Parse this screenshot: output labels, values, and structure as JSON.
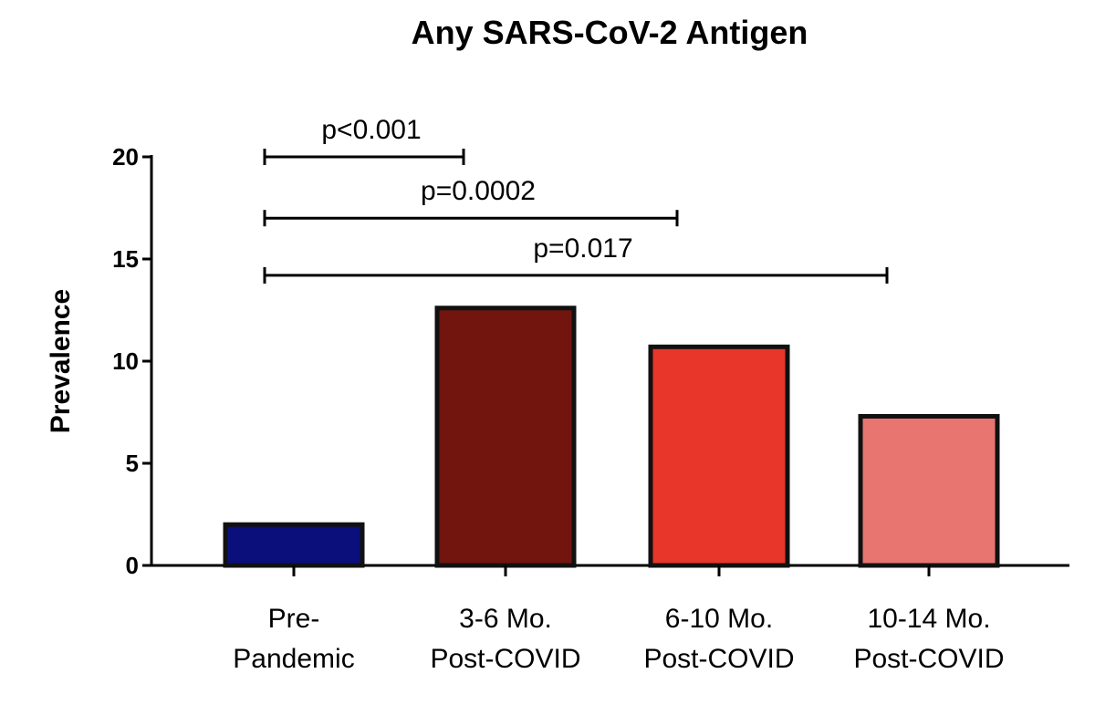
{
  "chart_data": {
    "type": "bar",
    "title": "Any SARS-CoV-2 Antigen",
    "xlabel": "",
    "ylabel": "Prevalence",
    "ylim": [
      0,
      20
    ],
    "yticks": [
      "0",
      "5",
      "10",
      "15",
      "20"
    ],
    "grid": false,
    "categories": [
      {
        "line1": "Pre-",
        "line2": "Pandemic"
      },
      {
        "line1": "3-6 Mo.",
        "line2": "Post-COVID"
      },
      {
        "line1": "6-10 Mo.",
        "line2": "Post-COVID"
      },
      {
        "line1": "10-14 Mo.",
        "line2": "Post-COVID"
      }
    ],
    "values": [
      2.0,
      12.6,
      10.7,
      7.3
    ],
    "colors": [
      "#0a0f7c",
      "#72150f",
      "#e8362a",
      "#e87570"
    ],
    "comparisons": [
      {
        "from": 0,
        "to": 1,
        "label": "p<0.001",
        "level": 20
      },
      {
        "from": 0,
        "to": 2,
        "label": "p=0.0002",
        "level": 17
      },
      {
        "from": 0,
        "to": 3,
        "label": "p=0.017",
        "level": 14.2
      }
    ]
  }
}
